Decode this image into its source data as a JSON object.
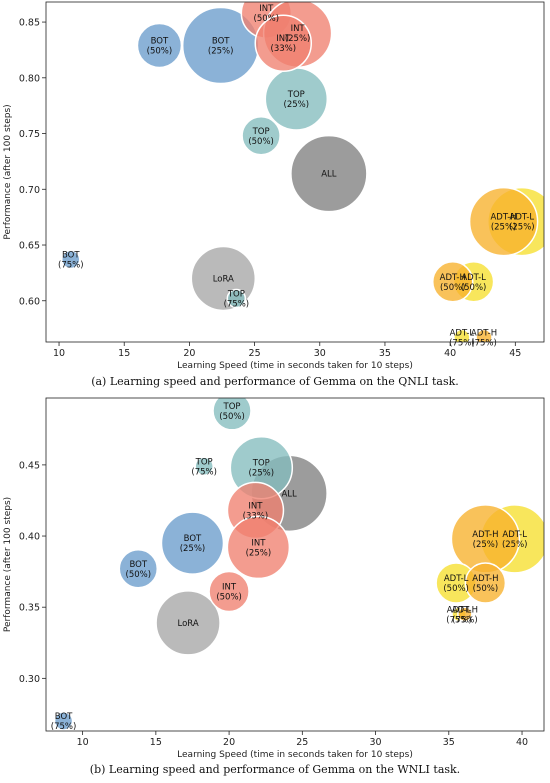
{
  "chart_data": [
    {
      "type": "scatter",
      "caption": "(a) Learning speed and performance of Gemma on the QNLI task.",
      "xlabel": "Learning Speed (time in seconds taken for 10 steps)",
      "ylabel": "Performance (after 100 steps)",
      "xlim": [
        9,
        47.2
      ],
      "ylim": [
        0.563,
        0.868
      ],
      "xticks": [
        10,
        15,
        20,
        25,
        30,
        35,
        40,
        45
      ],
      "yticks": [
        0.6,
        0.65,
        0.7,
        0.75,
        0.8,
        0.85
      ],
      "yprec": 2,
      "points": [
        {
          "method": "ALL",
          "label": "ALL",
          "x": 30.7,
          "y": 0.714,
          "r": 38,
          "color": "#808080"
        },
        {
          "method": "LoRA",
          "label": "LoRA",
          "x": 22.6,
          "y": 0.62,
          "r": 32,
          "color": "#a6a6a6"
        },
        {
          "method": "TOP",
          "label": "TOP\n(25%)",
          "x": 28.2,
          "y": 0.781,
          "r": 31,
          "color": "#84bcbe"
        },
        {
          "method": "TOP",
          "label": "TOP\n(50%)",
          "x": 25.5,
          "y": 0.748,
          "r": 19,
          "color": "#84bcbe"
        },
        {
          "method": "TOP",
          "label": "TOP\n(75%)",
          "x": 23.6,
          "y": 0.602,
          "r": 9,
          "color": "#84bcbe"
        },
        {
          "method": "BOT",
          "label": "BOT\n(25%)",
          "x": 22.4,
          "y": 0.829,
          "r": 38,
          "color": "#6a9ccc"
        },
        {
          "method": "BOT",
          "label": "BOT\n(50%)",
          "x": 17.7,
          "y": 0.829,
          "r": 22,
          "color": "#6a9ccc"
        },
        {
          "method": "BOT",
          "label": "BOT\n(75%)",
          "x": 10.9,
          "y": 0.637,
          "r": 9,
          "color": "#6a9ccc"
        },
        {
          "method": "INT",
          "label": "INT\n(50%)",
          "x": 25.9,
          "y": 0.858,
          "r": 25,
          "color": "#f08070"
        },
        {
          "method": "INT",
          "label": "INT\n(25%)",
          "x": 28.3,
          "y": 0.84,
          "r": 34,
          "color": "#f08070"
        },
        {
          "method": "INT",
          "label": "INT\n(33%)",
          "x": 27.2,
          "y": 0.831,
          "r": 28,
          "color": "#f08070"
        },
        {
          "method": "ADT-L",
          "label": "ADT-L\n(25%)",
          "x": 45.5,
          "y": 0.671,
          "r": 34,
          "color": "#f6df2e"
        },
        {
          "method": "ADT-H",
          "label": "ADT-H\n(25%)",
          "x": 44.1,
          "y": 0.671,
          "r": 34,
          "color": "#f7b12c"
        },
        {
          "method": "ADT-L",
          "label": "ADT-L\n(50%)",
          "x": 41.8,
          "y": 0.617,
          "r": 20,
          "color": "#f6df2e"
        },
        {
          "method": "ADT-H",
          "label": "ADT-H\n(50%)",
          "x": 40.2,
          "y": 0.617,
          "r": 20,
          "color": "#f7b12c"
        },
        {
          "method": "ADT-L",
          "label": "ADT-L\n(75%)",
          "x": 40.9,
          "y": 0.567,
          "r": 8,
          "color": "#f6df2e"
        },
        {
          "method": "ADT-H",
          "label": "ADT-H\n(75%)",
          "x": 42.6,
          "y": 0.567,
          "r": 8,
          "color": "#f7b12c"
        }
      ]
    },
    {
      "type": "scatter",
      "caption": "(b) Learning speed and performance of Gemma on the WNLI task.",
      "xlabel": "Learning Speed (time in seconds taken for 10 steps)",
      "ylabel": "Performance (after 100 steps)",
      "xlim": [
        7.5,
        41.5
      ],
      "ylim": [
        0.263,
        0.497
      ],
      "xticks": [
        10,
        15,
        20,
        25,
        30,
        35,
        40
      ],
      "yticks": [
        0.3,
        0.35,
        0.4,
        0.45
      ],
      "yprec": 2,
      "points": [
        {
          "method": "ALL",
          "label": "ALL",
          "x": 24.1,
          "y": 0.43,
          "r": 38,
          "color": "#808080"
        },
        {
          "method": "LoRA",
          "label": "LoRA",
          "x": 17.2,
          "y": 0.339,
          "r": 32,
          "color": "#a6a6a6"
        },
        {
          "method": "TOP",
          "label": "TOP\n(25%)",
          "x": 22.2,
          "y": 0.448,
          "r": 31,
          "color": "#84bcbe"
        },
        {
          "method": "TOP",
          "label": "TOP\n(50%)",
          "x": 20.2,
          "y": 0.488,
          "r": 19,
          "color": "#84bcbe"
        },
        {
          "method": "TOP",
          "label": "TOP\n(75%)",
          "x": 18.3,
          "y": 0.449,
          "r": 9,
          "color": "#84bcbe"
        },
        {
          "method": "BOT",
          "label": "BOT\n(25%)",
          "x": 17.5,
          "y": 0.395,
          "r": 31,
          "color": "#6a9ccc"
        },
        {
          "method": "BOT",
          "label": "BOT\n(50%)",
          "x": 13.8,
          "y": 0.377,
          "r": 19,
          "color": "#6a9ccc"
        },
        {
          "method": "BOT",
          "label": "BOT\n(75%)",
          "x": 8.7,
          "y": 0.27,
          "r": 9,
          "color": "#6a9ccc"
        },
        {
          "method": "INT",
          "label": "INT\n(33%)",
          "x": 21.8,
          "y": 0.418,
          "r": 28,
          "color": "#f08070"
        },
        {
          "method": "INT",
          "label": "INT\n(25%)",
          "x": 22.0,
          "y": 0.392,
          "r": 31,
          "color": "#f08070"
        },
        {
          "method": "INT",
          "label": "INT\n(50%)",
          "x": 20.0,
          "y": 0.361,
          "r": 20,
          "color": "#f08070"
        },
        {
          "method": "ADT-L",
          "label": "ADT-L\n(25%)",
          "x": 39.5,
          "y": 0.398,
          "r": 34,
          "color": "#f6df2e"
        },
        {
          "method": "ADT-H",
          "label": "ADT-H\n(25%)",
          "x": 37.5,
          "y": 0.398,
          "r": 34,
          "color": "#f7b12c"
        },
        {
          "method": "ADT-L",
          "label": "ADT-L\n(50%)",
          "x": 35.5,
          "y": 0.367,
          "r": 20,
          "color": "#f6df2e"
        },
        {
          "method": "ADT-H",
          "label": "ADT-H\n(50%)",
          "x": 37.5,
          "y": 0.367,
          "r": 20,
          "color": "#f7b12c"
        },
        {
          "method": "ADT-L",
          "label": "ADT-L\n(75%)",
          "x": 35.7,
          "y": 0.345,
          "r": 7,
          "color": "#f6df2e"
        },
        {
          "method": "ADT-H",
          "label": "ADT-H\n(75%)",
          "x": 36.1,
          "y": 0.345,
          "r": 7,
          "color": "#f7b12c"
        }
      ]
    }
  ]
}
